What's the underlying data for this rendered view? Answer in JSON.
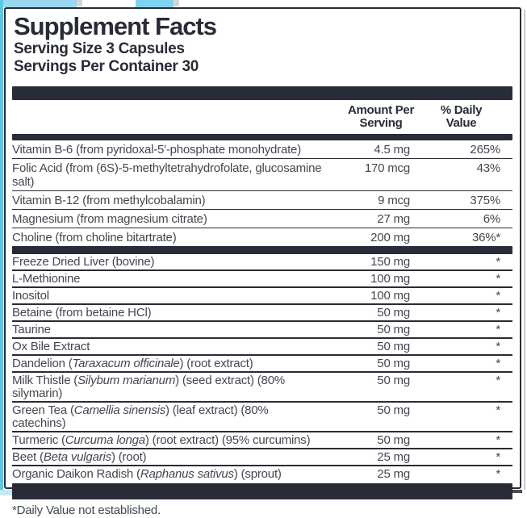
{
  "colors": {
    "dark": "#282c36",
    "text": "#43474f",
    "strip": "#5ec7e8",
    "patchA": "#9bd8f0",
    "patchB": "#7fd3f0",
    "pale": "#c7e9f6",
    "mid": "#8ed5f1",
    "bright": "#6fcdf0"
  },
  "header": {
    "title": "Supplement Facts",
    "serving_size": "Serving Size 3 Capsules",
    "servings_per_container": "Servings Per Container 30"
  },
  "columns": {
    "amount_line1": "Amount Per",
    "amount_line2": "Serving",
    "dv_line1": "% Daily",
    "dv_line2": "Value"
  },
  "table": {
    "sections": [
      {
        "rows": [
          {
            "name": [
              {
                "t": "Vitamin B-6 (from pyridoxal-5'-phosphate monohydrate)"
              }
            ],
            "amount": "4.5 mg",
            "dv": "265%"
          },
          {
            "name": [
              {
                "t": "Folic Acid (from (6S)-5-methyltetrahydrofolate, glucosamine salt)"
              }
            ],
            "amount": "170 mcg",
            "dv": "43%"
          },
          {
            "name": [
              {
                "t": "Vitamin B-12 (from methylcobalamin)"
              }
            ],
            "amount": "9 mcg",
            "dv": "375%"
          },
          {
            "name": [
              {
                "t": "Magnesium (from magnesium citrate)"
              }
            ],
            "amount": "27 mg",
            "dv": "6%"
          },
          {
            "name": [
              {
                "t": "Choline (from choline bitartrate)"
              }
            ],
            "amount": "200 mg",
            "dv": "36%*"
          }
        ]
      },
      {
        "rows": [
          {
            "name": [
              {
                "t": "Freeze Dried Liver (bovine)"
              }
            ],
            "amount": "150 mg",
            "dv": "*"
          },
          {
            "name": [
              {
                "t": "L-Methionine"
              }
            ],
            "amount": "100 mg",
            "dv": "*"
          },
          {
            "name": [
              {
                "t": "Inositol"
              }
            ],
            "amount": "100 mg",
            "dv": "*"
          },
          {
            "name": [
              {
                "t": "Betaine (from betaine HCl)"
              }
            ],
            "amount": "50 mg",
            "dv": "*"
          },
          {
            "name": [
              {
                "t": "Taurine"
              }
            ],
            "amount": "50 mg",
            "dv": "*"
          },
          {
            "name": [
              {
                "t": "Ox Bile Extract"
              }
            ],
            "amount": "50 mg",
            "dv": "*"
          },
          {
            "name": [
              {
                "t": "Dandelion ("
              },
              {
                "t": "Taraxacum officinale",
                "i": true
              },
              {
                "t": ") (root extract)"
              }
            ],
            "amount": "50 mg",
            "dv": "*"
          },
          {
            "name": [
              {
                "t": "Milk Thistle ("
              },
              {
                "t": "Silybum marianum",
                "i": true
              },
              {
                "t": ") (seed extract) (80% silymarin)"
              }
            ],
            "amount": "50 mg",
            "dv": "*"
          },
          {
            "name": [
              {
                "t": "Green Tea ("
              },
              {
                "t": "Camellia sinensis",
                "i": true
              },
              {
                "t": ") (leaf extract) (80% catechins)"
              }
            ],
            "amount": "50 mg",
            "dv": "*"
          },
          {
            "name": [
              {
                "t": "Turmeric ("
              },
              {
                "t": "Curcuma longa",
                "i": true
              },
              {
                "t": ") (root extract) (95% curcumins)"
              }
            ],
            "amount": "50 mg",
            "dv": "*"
          },
          {
            "name": [
              {
                "t": "Beet ("
              },
              {
                "t": "Beta vulgaris",
                "i": true
              },
              {
                "t": ") (root)"
              }
            ],
            "amount": "25 mg",
            "dv": "*"
          },
          {
            "name": [
              {
                "t": "Organic Daikon Radish ("
              },
              {
                "t": "Raphanus sativus",
                "i": true
              },
              {
                "t": ") (sprout)"
              }
            ],
            "amount": "25 mg",
            "dv": "*"
          }
        ]
      }
    ]
  },
  "footnote": "*Daily Value not established."
}
